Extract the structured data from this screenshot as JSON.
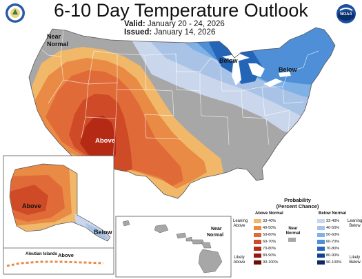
{
  "title": "6-10 Day Temperature Outlook",
  "valid": {
    "label": "Valid:",
    "value": "January 20 - 24, 2026"
  },
  "issued": {
    "label": "Issued:",
    "value": "January 14, 2026"
  },
  "logos": {
    "left": "usda-seal-icon",
    "right": "noaa-logo-icon",
    "right_text": "NOAA"
  },
  "map_labels": {
    "near_normal_nw": [
      "Near",
      "Normal"
    ],
    "below_gl": "Below",
    "below_ne": "Below",
    "above_sw": "Above",
    "alaska_above": "Above",
    "alaska_below": "Below",
    "aleutian_label": "Aleutian Islands",
    "aleutian_above": "Above",
    "hawaii_near_normal": [
      "Near",
      "Normal"
    ]
  },
  "legend": {
    "title": [
      "Probability",
      "(Percent Chance)"
    ],
    "above_header": "Above Normal",
    "below_header": "Below Normal",
    "near_header": [
      "Near",
      "Normal"
    ],
    "leaning_above": [
      "Leaning",
      "Above"
    ],
    "likely_above": [
      "Likely",
      "Above"
    ],
    "leaning_below": [
      "Leaning",
      "Below"
    ],
    "likely_below": [
      "Likely",
      "Below"
    ],
    "ranges": [
      "33-40%",
      "40-50%",
      "50-60%",
      "60-70%",
      "70-80%",
      "80-90%",
      "90-100%"
    ],
    "above_colors": [
      "#f1b869",
      "#e98a45",
      "#e06b39",
      "#cf4a26",
      "#b42a15",
      "#94190e",
      "#6e0d06"
    ],
    "below_colors": [
      "#c9d6ec",
      "#a9c3e6",
      "#7fb0e6",
      "#4e8fd8",
      "#2465b8",
      "#13408f",
      "#0b2a63"
    ],
    "near_color": "#a7a7a7"
  }
}
